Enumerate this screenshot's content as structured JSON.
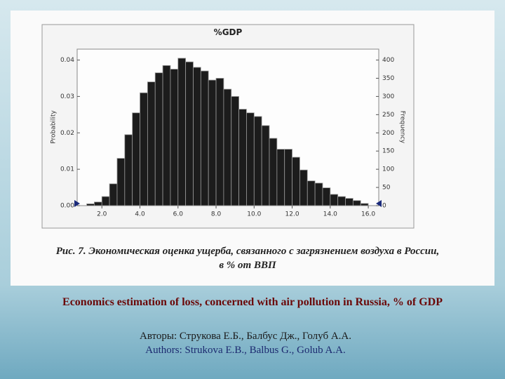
{
  "chart_data": {
    "type": "histogram",
    "title": "%GDP",
    "y_label": "Probability",
    "y2_label": "Frequency",
    "bins": [
      1.2,
      1.6,
      2.0,
      2.4,
      2.8,
      3.2,
      3.6,
      4.0,
      4.4,
      4.8,
      5.2,
      5.6,
      6.0,
      6.4,
      6.8,
      7.2,
      7.6,
      8.0,
      8.4,
      8.8,
      9.2,
      9.6,
      10.0,
      10.4,
      10.8,
      11.2,
      11.6,
      12.0,
      12.4,
      12.8,
      13.2,
      13.6,
      14.0,
      14.4,
      14.8,
      15.2,
      15.6,
      16.0
    ],
    "values": [
      0.0005,
      0.001,
      0.0025,
      0.006,
      0.013,
      0.0195,
      0.0255,
      0.031,
      0.034,
      0.0365,
      0.0385,
      0.0375,
      0.0405,
      0.0395,
      0.038,
      0.037,
      0.0345,
      0.035,
      0.032,
      0.03,
      0.0265,
      0.0255,
      0.0245,
      0.022,
      0.0185,
      0.0155,
      0.0155,
      0.0133,
      0.0098,
      0.0068,
      0.0062,
      0.0049,
      0.0031,
      0.0025,
      0.002,
      0.0014,
      0.0006
    ],
    "color": "#1c1c1c",
    "xlim": [
      0.7,
      16.55
    ],
    "ylim": [
      0,
      0.043
    ],
    "y2lim": [
      0,
      430
    ],
    "xticks": [
      {
        "value": 2,
        "label": "2.0"
      },
      {
        "value": 4,
        "label": "4.0"
      },
      {
        "value": 6,
        "label": "6.0"
      },
      {
        "value": 8,
        "label": "8.0"
      },
      {
        "value": 10,
        "label": "10.0"
      },
      {
        "value": 12,
        "label": "12.0"
      },
      {
        "value": 14,
        "label": "14.0"
      },
      {
        "value": 16,
        "label": "16.0"
      }
    ],
    "yticks": [
      {
        "value": 0,
        "label": "0.00"
      },
      0.01,
      0.02,
      0.03,
      0.04
    ],
    "y2ticks": [
      0,
      50,
      100,
      150,
      200,
      250,
      300,
      350,
      400
    ]
  },
  "slide": {
    "caption": [
      "Рис. 7. Экономическая оценка ущерба, связанного с загрязнением воздуха в России,",
      "в % от ВВП"
    ],
    "title": "Economics estimation of loss, concerned with air pollution in Russia, % of GDP",
    "authors_ru": "Авторы: Струкова Е.Б., Балбус Дж., Голуб А.А.",
    "authors_en": "Authors: Strukova E.B., Balbus G., Golub A.A."
  }
}
